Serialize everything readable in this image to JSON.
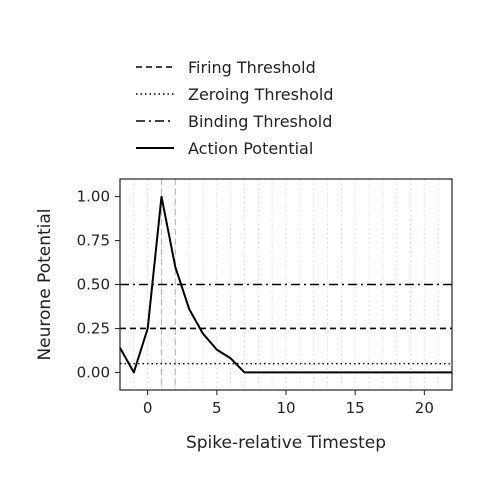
{
  "chart_data": {
    "type": "line",
    "xlabel": "Spike-relative Timestep",
    "ylabel": "Neurone Potential",
    "xlim": [
      -2,
      22
    ],
    "ylim": [
      -0.1,
      1.1
    ],
    "x_ticks": [
      0,
      5,
      10,
      15,
      20
    ],
    "y_ticks": [
      0.0,
      0.25,
      0.5,
      0.75,
      1.0
    ],
    "x_tick_labels": [
      "0",
      "5",
      "10",
      "15",
      "20"
    ],
    "y_tick_labels": [
      "0.00",
      "0.25",
      "0.50",
      "0.75",
      "1.00"
    ],
    "grid": "vertical dotted gridlines at each timestep",
    "legend_position": "above plot",
    "series": [
      {
        "name": "Action Potential",
        "style": "solid",
        "x": [
          -2,
          -1,
          0,
          1,
          2,
          3,
          4,
          5,
          6,
          7,
          8,
          9,
          10,
          11,
          12,
          13,
          14,
          15,
          16,
          17,
          18,
          19,
          20,
          21,
          22
        ],
        "y": [
          0.14,
          0.0,
          0.25,
          1.0,
          0.6,
          0.36,
          0.22,
          0.13,
          0.08,
          0.0,
          0.0,
          0.0,
          0.0,
          0.0,
          0.0,
          0.0,
          0.0,
          0.0,
          0.0,
          0.0,
          0.0,
          0.0,
          0.0,
          0.0,
          0.0
        ]
      },
      {
        "name": "Firing Threshold",
        "style": "dashed",
        "y_value": 0.25
      },
      {
        "name": "Zeroing Threshold",
        "style": "dotted",
        "y_value": 0.05
      },
      {
        "name": "Binding Threshold",
        "style": "dashdot",
        "y_value": 0.5
      }
    ],
    "vertical_markers": [
      1,
      2
    ],
    "legend_order": [
      "Firing Threshold",
      "Zeroing Threshold",
      "Binding Threshold",
      "Action Potential"
    ]
  }
}
